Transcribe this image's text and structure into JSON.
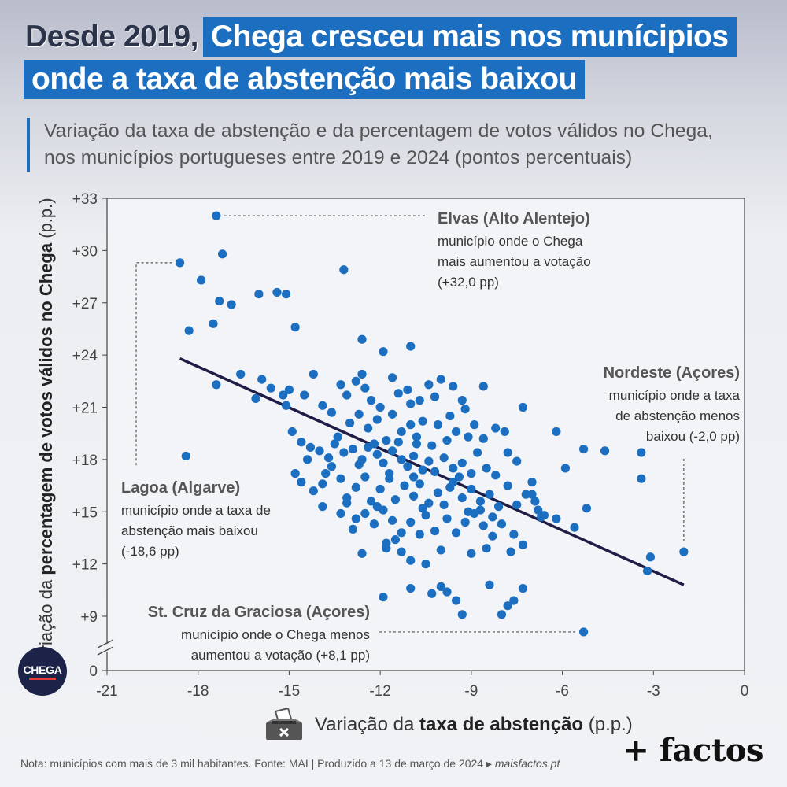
{
  "title": {
    "lead": "Desde 2019,",
    "highlight1": "Chega cresceu mais nos munícipios",
    "highlight2": "onde a taxa de abstenção mais baixou"
  },
  "subtitle_line1": "Variação da taxa de abstenção e da percentagem de votos válidos no Chega,",
  "subtitle_line2": "nos municípios portugueses entre 2019 e 2024 (pontos percentuais)",
  "xlabel": {
    "pre": "Variação da ",
    "bold": "taxa de abstenção",
    "post": " (p.p.)"
  },
  "ylabel": {
    "pre": "Variação da ",
    "bold": "percentagem de votos válidos no Chega",
    "post": " (p.p.)"
  },
  "logo_text": "CHEGA",
  "footer": {
    "note": "Nota: municípios com mais de 3 mil habitantes. Fonte: MAI | Produzido a 13 de março de 2024 ▸",
    "site": "maisfactos.pt"
  },
  "brand": "+ factos",
  "colors": {
    "dot": "#1c6fc0",
    "trend": "#1d1d45",
    "accent": "#1c6fc0"
  },
  "chart_data": {
    "type": "scatter",
    "xlim": [
      -21,
      0
    ],
    "ylim": [
      7,
      33
    ],
    "y_axis_break": true,
    "xticks": [
      -21,
      -18,
      -15,
      -12,
      -9,
      -6,
      -3,
      0
    ],
    "xtick_labels": [
      "-21",
      "-18",
      "-15",
      "-12",
      "-9",
      "-6",
      "-3",
      "0"
    ],
    "yticks": [
      9,
      12,
      15,
      18,
      21,
      24,
      27,
      30,
      33
    ],
    "ytick_labels": [
      "+9",
      "+12",
      "+15",
      "+18",
      "+21",
      "+24",
      "+27",
      "+30",
      "+33"
    ],
    "y_zero_label": "0",
    "grid": true,
    "trend_line": {
      "x": [
        -18.6,
        -2.0
      ],
      "y": [
        23.8,
        10.8
      ]
    },
    "annotations": [
      {
        "name": "Elvas (Alto Alentejo)",
        "lines": [
          "município onde o Chega",
          "mais aumentou a votação",
          "(+32,0 pp)"
        ],
        "x": -17.4,
        "y": 32.0
      },
      {
        "name": "Lagoa (Algarve)",
        "lines": [
          "município onde a taxa de",
          "abstenção mais baixou",
          "(-18,6 pp)"
        ],
        "x": -18.6,
        "y": 29.3
      },
      {
        "name": "Nordeste (Açores)",
        "lines": [
          "município onde a taxa",
          "de abstenção menos",
          "baixou (-2,0 pp)"
        ],
        "x": -2.0,
        "y": 12.7
      },
      {
        "name": "St. Cruz da Graciosa (Açores)",
        "lines": [
          "município onde o Chega menos",
          "aumentou a votação (+8,1 pp)"
        ],
        "x": -5.3,
        "y": 8.1
      }
    ],
    "points": [
      [
        -17.4,
        32.0
      ],
      [
        -17.2,
        29.8
      ],
      [
        -18.6,
        29.3
      ],
      [
        -17.9,
        28.3
      ],
      [
        -17.3,
        27.1
      ],
      [
        -16.9,
        26.9
      ],
      [
        -16.0,
        27.5
      ],
      [
        -15.4,
        27.6
      ],
      [
        -15.1,
        27.5
      ],
      [
        -13.2,
        28.9
      ],
      [
        -18.3,
        25.4
      ],
      [
        -17.5,
        25.8
      ],
      [
        -14.8,
        25.6
      ],
      [
        -12.6,
        24.9
      ],
      [
        -11.9,
        24.2
      ],
      [
        -11.0,
        24.5
      ],
      [
        -17.4,
        22.3
      ],
      [
        -16.6,
        22.9
      ],
      [
        -16.1,
        21.5
      ],
      [
        -15.6,
        22.1
      ],
      [
        -15.2,
        21.7
      ],
      [
        -15.1,
        21.1
      ],
      [
        -14.2,
        22.9
      ],
      [
        -14.5,
        21.7
      ],
      [
        -13.9,
        21.1
      ],
      [
        -13.3,
        22.3
      ],
      [
        -13.1,
        21.7
      ],
      [
        -12.8,
        22.5
      ],
      [
        -12.5,
        22.1
      ],
      [
        -12.3,
        21.4
      ],
      [
        -12.6,
        22.9
      ],
      [
        -12.0,
        21.0
      ],
      [
        -11.6,
        22.7
      ],
      [
        -11.4,
        21.8
      ],
      [
        -11.1,
        22.0
      ],
      [
        -11.0,
        21.2
      ],
      [
        -10.7,
        21.4
      ],
      [
        -10.4,
        22.3
      ],
      [
        -10.2,
        21.6
      ],
      [
        -10.0,
        22.6
      ],
      [
        -9.6,
        22.2
      ],
      [
        -9.3,
        21.4
      ],
      [
        -9.2,
        20.9
      ],
      [
        -8.6,
        22.2
      ],
      [
        -7.3,
        21.0
      ],
      [
        -6.2,
        19.6
      ],
      [
        -13.6,
        20.7
      ],
      [
        -13.4,
        19.3
      ],
      [
        -13.0,
        20.1
      ],
      [
        -12.7,
        20.6
      ],
      [
        -12.4,
        19.8
      ],
      [
        -12.1,
        20.3
      ],
      [
        -11.8,
        19.1
      ],
      [
        -11.6,
        20.6
      ],
      [
        -11.3,
        19.6
      ],
      [
        -11.0,
        20.0
      ],
      [
        -10.8,
        19.3
      ],
      [
        -10.6,
        20.2
      ],
      [
        -10.3,
        18.8
      ],
      [
        -10.1,
        20.0
      ],
      [
        -9.8,
        19.1
      ],
      [
        -9.7,
        20.5
      ],
      [
        -9.5,
        19.6
      ],
      [
        -9.1,
        19.3
      ],
      [
        -8.9,
        20.0
      ],
      [
        -8.6,
        19.2
      ],
      [
        -8.2,
        19.8
      ],
      [
        -7.9,
        19.6
      ],
      [
        -14.9,
        19.6
      ],
      [
        -14.6,
        19.0
      ],
      [
        -14.3,
        18.7
      ],
      [
        -14.0,
        18.5
      ],
      [
        -13.7,
        18.1
      ],
      [
        -13.5,
        18.9
      ],
      [
        -13.2,
        18.4
      ],
      [
        -12.9,
        18.6
      ],
      [
        -12.6,
        18.0
      ],
      [
        -12.4,
        18.7
      ],
      [
        -12.1,
        18.3
      ],
      [
        -11.9,
        17.8
      ],
      [
        -11.6,
        18.5
      ],
      [
        -11.3,
        18.0
      ],
      [
        -11.1,
        17.6
      ],
      [
        -10.9,
        18.2
      ],
      [
        -10.6,
        17.4
      ],
      [
        -10.4,
        17.9
      ],
      [
        -10.2,
        17.3
      ],
      [
        -9.9,
        18.1
      ],
      [
        -9.6,
        17.5
      ],
      [
        -9.3,
        17.8
      ],
      [
        -9.0,
        17.2
      ],
      [
        -8.8,
        18.4
      ],
      [
        -8.5,
        17.5
      ],
      [
        -8.2,
        17.1
      ],
      [
        -7.8,
        18.4
      ],
      [
        -7.5,
        17.9
      ],
      [
        -14.8,
        17.2
      ],
      [
        -14.2,
        16.2
      ],
      [
        -13.9,
        16.6
      ],
      [
        -13.6,
        17.6
      ],
      [
        -13.3,
        16.9
      ],
      [
        -13.1,
        15.8
      ],
      [
        -12.8,
        16.4
      ],
      [
        -12.5,
        17.0
      ],
      [
        -12.3,
        15.6
      ],
      [
        -12.0,
        16.3
      ],
      [
        -11.7,
        16.9
      ],
      [
        -11.5,
        15.7
      ],
      [
        -11.2,
        16.5
      ],
      [
        -10.9,
        15.9
      ],
      [
        -10.7,
        16.6
      ],
      [
        -10.4,
        15.5
      ],
      [
        -10.1,
        16.1
      ],
      [
        -9.9,
        15.4
      ],
      [
        -9.6,
        16.7
      ],
      [
        -9.3,
        15.8
      ],
      [
        -9.0,
        16.3
      ],
      [
        -8.7,
        15.6
      ],
      [
        -8.4,
        16.0
      ],
      [
        -8.1,
        15.3
      ],
      [
        -7.8,
        16.5
      ],
      [
        -7.5,
        15.4
      ],
      [
        -7.2,
        16.0
      ],
      [
        -6.9,
        15.6
      ],
      [
        -6.6,
        14.8
      ],
      [
        -6.2,
        14.6
      ],
      [
        -13.9,
        15.3
      ],
      [
        -13.3,
        14.9
      ],
      [
        -12.8,
        14.6
      ],
      [
        -12.5,
        14.9
      ],
      [
        -12.2,
        14.3
      ],
      [
        -11.9,
        15.1
      ],
      [
        -11.6,
        14.5
      ],
      [
        -11.3,
        13.8
      ],
      [
        -11.0,
        14.4
      ],
      [
        -10.7,
        13.7
      ],
      [
        -10.5,
        14.8
      ],
      [
        -10.2,
        13.9
      ],
      [
        -9.8,
        14.6
      ],
      [
        -9.5,
        13.8
      ],
      [
        -9.2,
        14.4
      ],
      [
        -8.9,
        14.9
      ],
      [
        -8.6,
        14.2
      ],
      [
        -8.3,
        13.6
      ],
      [
        -8.0,
        14.3
      ],
      [
        -7.6,
        13.7
      ],
      [
        -12.6,
        12.6
      ],
      [
        -11.8,
        12.9
      ],
      [
        -11.5,
        13.4
      ],
      [
        -11.3,
        12.7
      ],
      [
        -11.0,
        12.2
      ],
      [
        -10.0,
        12.8
      ],
      [
        -9.0,
        12.6
      ],
      [
        -8.5,
        12.9
      ],
      [
        -7.7,
        12.7
      ],
      [
        -7.3,
        13.1
      ],
      [
        -11.9,
        10.1
      ],
      [
        -11.0,
        10.6
      ],
      [
        -10.3,
        10.3
      ],
      [
        -10.0,
        10.7
      ],
      [
        -9.8,
        10.4
      ],
      [
        -9.5,
        9.9
      ],
      [
        -9.3,
        9.1
      ],
      [
        -8.4,
        10.8
      ],
      [
        -7.8,
        9.6
      ],
      [
        -7.6,
        9.9
      ],
      [
        -7.3,
        10.6
      ],
      [
        -8.0,
        9.1
      ],
      [
        -7.0,
        16.0
      ],
      [
        -5.6,
        14.1
      ],
      [
        -5.2,
        15.2
      ],
      [
        -5.3,
        18.6
      ],
      [
        -4.6,
        18.5
      ],
      [
        -3.4,
        18.4
      ],
      [
        -3.4,
        16.9
      ],
      [
        -3.1,
        12.4
      ],
      [
        -3.2,
        11.6
      ],
      [
        -2.0,
        12.7
      ],
      [
        -5.3,
        8.1
      ],
      [
        -5.9,
        17.5
      ],
      [
        -6.8,
        15.1
      ],
      [
        -7.0,
        16.7
      ],
      [
        -6.7,
        14.7
      ],
      [
        -14.6,
        16.7
      ],
      [
        -15.9,
        22.6
      ],
      [
        -15.0,
        22.0
      ],
      [
        -12.2,
        18.9
      ],
      [
        -11.4,
        19.0
      ],
      [
        -10.8,
        18.9
      ],
      [
        -9.4,
        17.0
      ],
      [
        -12.7,
        17.7
      ],
      [
        -13.8,
        17.2
      ],
      [
        -14.4,
        18.0
      ],
      [
        -11.7,
        17.2
      ],
      [
        -10.9,
        17.0
      ],
      [
        -9.7,
        16.4
      ],
      [
        -8.3,
        14.7
      ],
      [
        -12.1,
        15.3
      ],
      [
        -10.6,
        15.2
      ],
      [
        -13.1,
        15.5
      ],
      [
        -18.4,
        18.2
      ],
      [
        -12.9,
        14.0
      ],
      [
        -11.8,
        13.2
      ],
      [
        -10.5,
        12.0
      ],
      [
        -9.1,
        15.0
      ],
      [
        -8.7,
        15.1
      ]
    ]
  }
}
